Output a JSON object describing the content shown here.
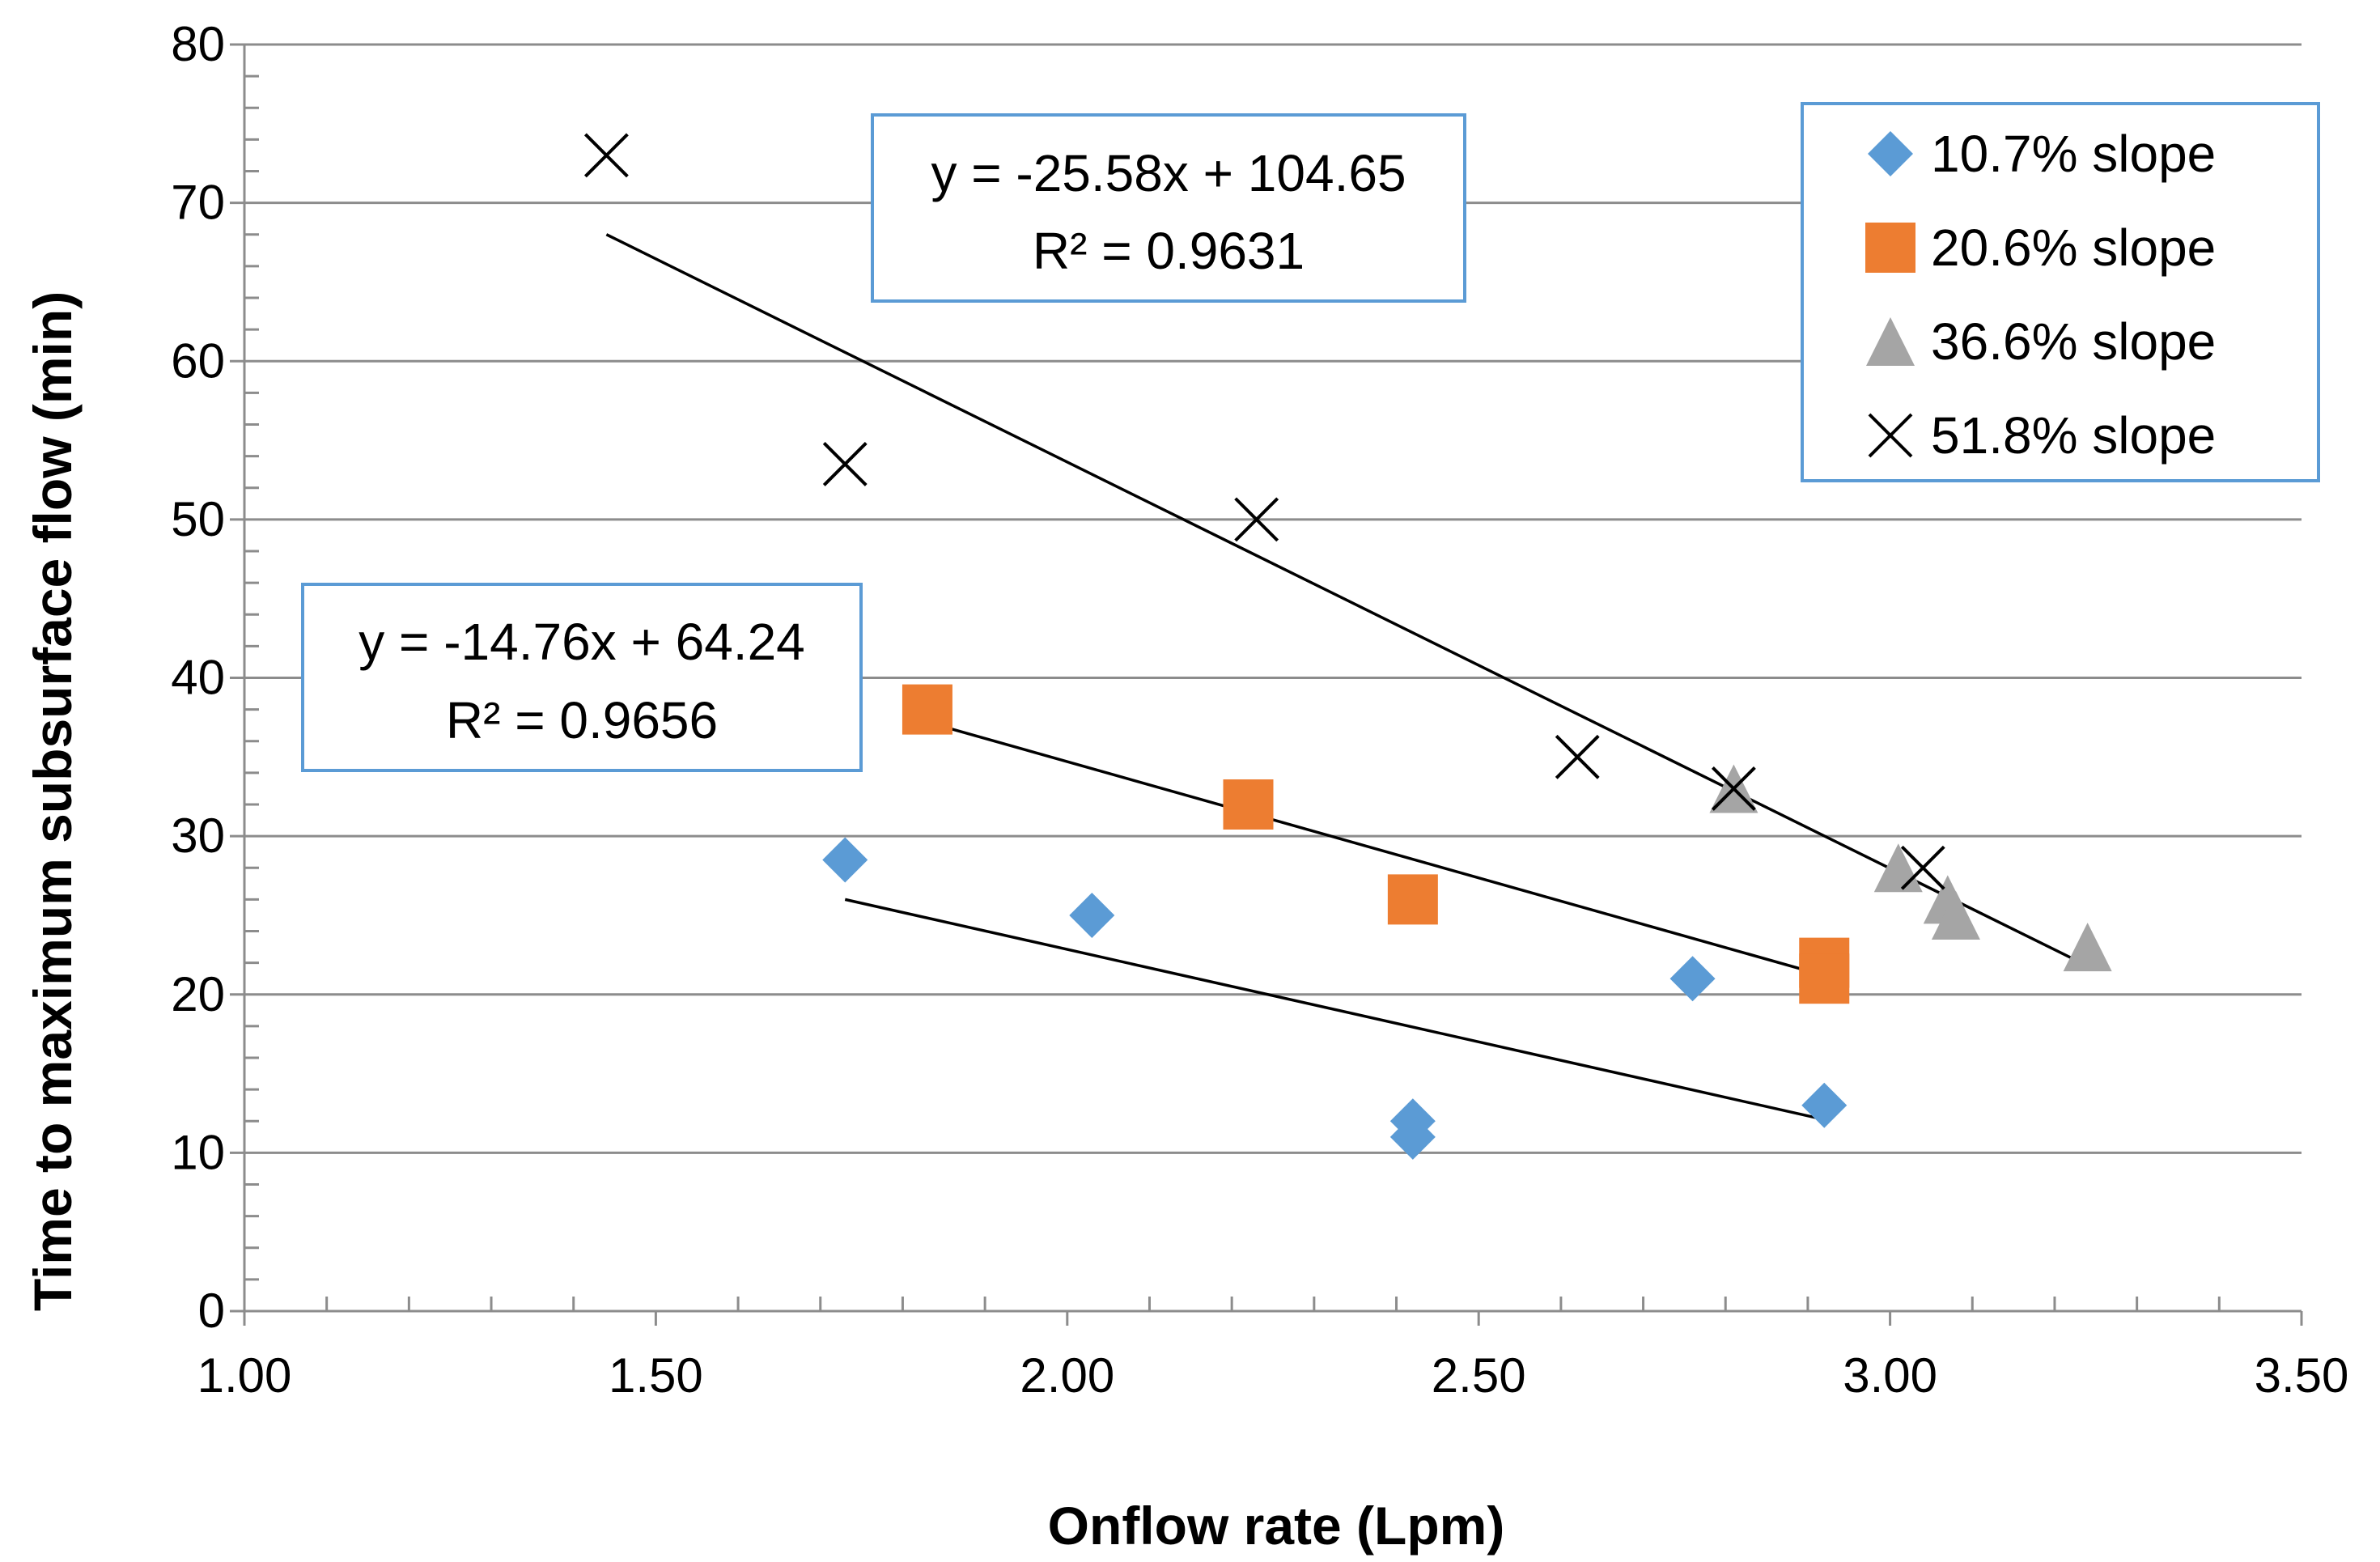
{
  "chart_data": {
    "type": "scatter",
    "title": "",
    "xlabel": "Onflow rate (Lpm)",
    "ylabel": "Time to maximum subsurface flow (min)",
    "xlim": [
      1.0,
      3.5
    ],
    "ylim": [
      0,
      80
    ],
    "x_ticks": [
      "1.00",
      "1.50",
      "2.00",
      "2.50",
      "3.00",
      "3.50"
    ],
    "y_ticks": [
      "0",
      "10",
      "20",
      "30",
      "40",
      "50",
      "60",
      "70",
      "80"
    ],
    "grid": "horizontal",
    "legend_position": "top-right",
    "series": [
      {
        "name": "10.7% slope",
        "marker": "diamond",
        "color": "#5B9BD5",
        "points": [
          [
            1.73,
            28.5
          ],
          [
            2.03,
            25
          ],
          [
            2.42,
            12
          ],
          [
            2.42,
            11
          ],
          [
            2.76,
            21
          ],
          [
            2.92,
            13
          ]
        ]
      },
      {
        "name": "20.6% slope",
        "marker": "square",
        "color": "#ED7D31",
        "points": [
          [
            1.83,
            38
          ],
          [
            2.22,
            32
          ],
          [
            2.42,
            26
          ],
          [
            2.92,
            22
          ],
          [
            2.92,
            21
          ]
        ]
      },
      {
        "name": "36.6% slope",
        "marker": "triangle",
        "color": "#A5A5A5",
        "points": [
          [
            2.81,
            33
          ],
          [
            3.01,
            28
          ],
          [
            3.07,
            26
          ],
          [
            3.08,
            25
          ],
          [
            3.24,
            23
          ]
        ]
      },
      {
        "name": "51.8% slope",
        "marker": "x",
        "color": "#000000",
        "points": [
          [
            1.44,
            73
          ],
          [
            1.73,
            53.5
          ],
          [
            2.23,
            50
          ],
          [
            2.62,
            35
          ],
          [
            2.81,
            33
          ],
          [
            3.04,
            28
          ]
        ]
      }
    ],
    "trendlines": [
      {
        "x": [
          1.73,
          2.92
        ],
        "y": [
          26.0,
          12.1
        ]
      },
      {
        "x": [
          1.83,
          2.92
        ],
        "y": [
          37.2,
          21.2
        ]
      },
      {
        "x": [
          1.44,
          3.24
        ],
        "y": [
          68.0,
          21.8
        ]
      }
    ],
    "annotations": [
      {
        "line1": "y = -25.58x + 104.65",
        "line2": "R² = 0.9631"
      },
      {
        "line1": "y = -14.76x + 64.24",
        "line2": "R² = 0.9656"
      }
    ]
  }
}
